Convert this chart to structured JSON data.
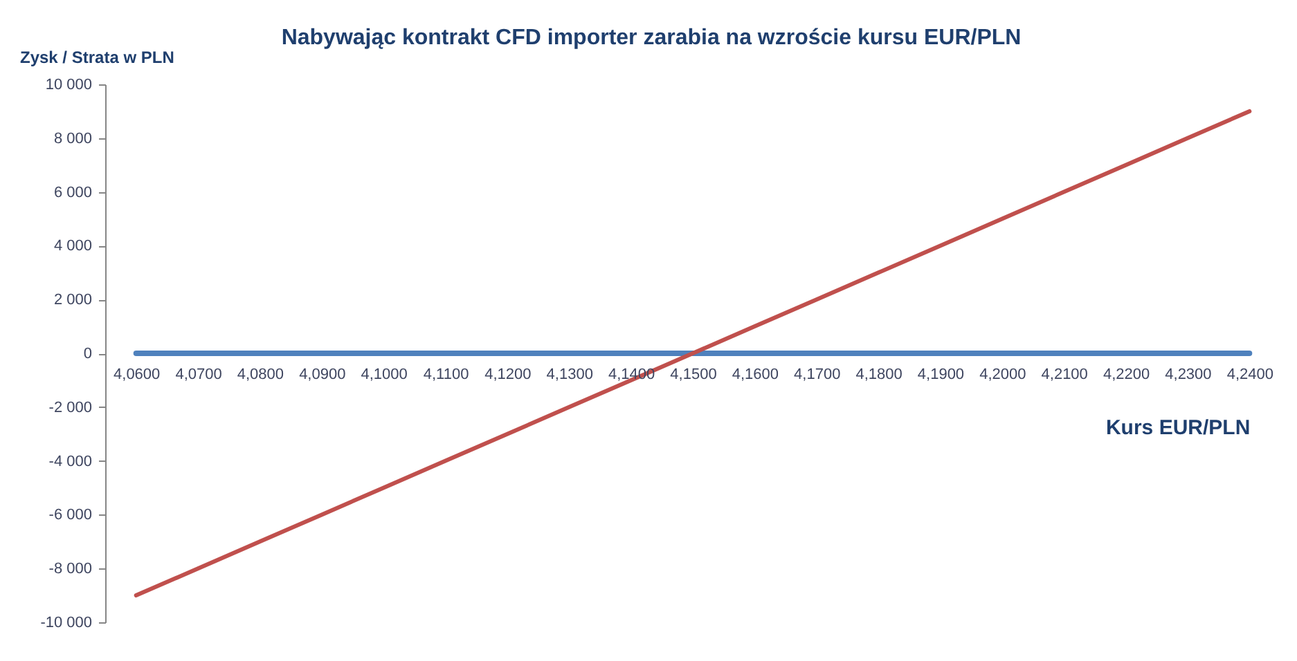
{
  "chart_data": {
    "type": "line",
    "title": "Nabywając kontrakt CFD importer zarabia na wzroście kursu EUR/PLN",
    "xlabel": "Kurs EUR/PLN",
    "ylabel": "Zysk / Strata w PLN",
    "categories": [
      "4,0600",
      "4,0700",
      "4,0800",
      "4,0900",
      "4,1000",
      "4,1100",
      "4,1200",
      "4,1300",
      "4,1400",
      "4,1500",
      "4,1600",
      "4,1700",
      "4,1800",
      "4,1900",
      "4,2000",
      "4,2100",
      "4,2200",
      "4,2300",
      "4,2400"
    ],
    "series": [
      {
        "color": "#4f81bd",
        "values": [
          0,
          0,
          0,
          0,
          0,
          0,
          0,
          0,
          0,
          0,
          0,
          0,
          0,
          0,
          0,
          0,
          0,
          0,
          0
        ]
      },
      {
        "color": "#c0504d",
        "values": [
          -9000,
          -8000,
          -7000,
          -6000,
          -5000,
          -4000,
          -3000,
          -2000,
          -1000,
          0,
          1000,
          2000,
          3000,
          4000,
          5000,
          6000,
          7000,
          8000,
          9000
        ]
      }
    ],
    "ylim": [
      -10000,
      10000
    ],
    "yticks": [
      {
        "value": -10000,
        "label": "-10 000"
      },
      {
        "value": -8000,
        "label": "-8 000"
      },
      {
        "value": -6000,
        "label": "-6 000"
      },
      {
        "value": -4000,
        "label": "-4 000"
      },
      {
        "value": -2000,
        "label": "-2 000"
      },
      0,
      {
        "value": 2000,
        "label": "2 000"
      },
      {
        "value": 4000,
        "label": "4 000"
      },
      {
        "value": 6000,
        "label": "6 000"
      },
      {
        "value": 8000,
        "label": "8 000"
      },
      {
        "value": 10000,
        "label": "10 000"
      }
    ],
    "grid": false
  }
}
